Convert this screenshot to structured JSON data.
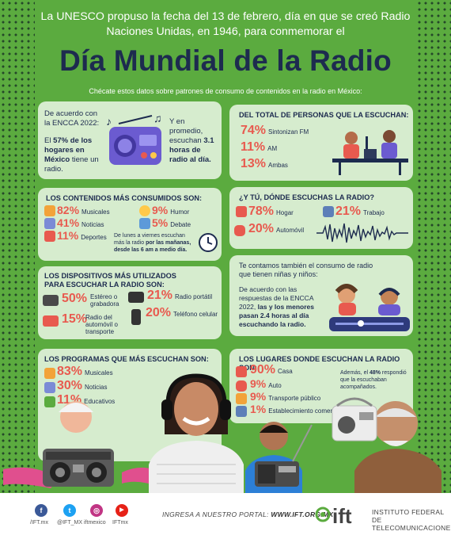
{
  "intro": "La UNESCO propuso la fecha del 13 de febrero, día en que se creó Radio Naciones Unidas, en 1946, para conmemorar el",
  "title": "Día Mundial de la Radio",
  "subtitle": "Chécate estos datos sobre patrones de consumo de contenidos en la radio en México:",
  "card1": {
    "left_a": "De acuerdo con la ENCCA 2022:",
    "left_b1": "El ",
    "left_b_pct": "57% de los hogares en México",
    "left_b2": " tiene un radio.",
    "right_a": "Y en promedio, escuchan",
    "right_b": "3.1 horas de radio al día."
  },
  "card2": {
    "header": "DEL TOTAL DE PERSONAS QUE LA ESCUCHAN:",
    "items": [
      {
        "pct": "74%",
        "label": "Sintonizan FM"
      },
      {
        "pct": "11%",
        "label": "AM"
      },
      {
        "pct": "13%",
        "label": "Ambas"
      }
    ]
  },
  "card3": {
    "header": "LOS CONTENIDOS MÁS CONSUMIDOS SON:",
    "items": [
      {
        "pct": "82%",
        "label": "Musicales"
      },
      {
        "pct": "41%",
        "label": "Noticias"
      },
      {
        "pct": "11%",
        "label": "Deportes"
      },
      {
        "pct": "9%",
        "label": "Humor"
      },
      {
        "pct": "5%",
        "label": "Debate"
      }
    ],
    "note_a": "De lunes a viernes escuchan más la radio ",
    "note_b": "por las mañanas, desde las 6 am a medio día."
  },
  "card4": {
    "header": "¿Y TÚ, DÓNDE ESCUCHAS LA RADIO?",
    "items": [
      {
        "pct": "78%",
        "label": "Hogar"
      },
      {
        "pct": "21%",
        "label": "Trabajo"
      },
      {
        "pct": "20%",
        "label": "Automóvil"
      }
    ]
  },
  "card5": {
    "header_1": "LOS DISPOSITIVOS MÁS UTILIZADOS",
    "header_2": "PARA ESCUCHAR LA RADIO SON:",
    "items": [
      {
        "pct": "50%",
        "label": "Estéreo o grabadora"
      },
      {
        "pct": "21%",
        "label": "Radio portátil"
      },
      {
        "pct": "15%",
        "label": "Radio del automóvil o transporte"
      },
      {
        "pct": "20%",
        "label": "Teléfono celular"
      }
    ]
  },
  "card6": {
    "lead": "Te contamos también el consumo de radio que tienen niñas y niños:",
    "body_a": "De acuerdo con las respuestas de la ENCCA 2022, ",
    "body_b": "las y los menores pasan 2.4 horas al día escuchando la radio."
  },
  "card7": {
    "header": "LOS PROGRAMAS QUE MÁS ESCUCHAN SON:",
    "items": [
      {
        "pct": "83%",
        "label": "Musicales"
      },
      {
        "pct": "30%",
        "label": "Noticias"
      },
      {
        "pct": "11%",
        "label": "Educativos"
      }
    ]
  },
  "card8": {
    "header": "LOS LUGARES DONDE ESCUCHAN LA RADIO SON:",
    "items": [
      {
        "pct": "90%",
        "label": "Casa"
      },
      {
        "pct": "9%",
        "label": "Auto"
      },
      {
        "pct": "9%",
        "label": "Transporte público"
      },
      {
        "pct": "1%",
        "label": "Establecimiento comercial"
      }
    ],
    "note_a": "Además, el ",
    "note_pct": "48%",
    "note_b": " respondió que la escuchaban acompañados."
  },
  "footer": {
    "social": [
      {
        "icon": "facebook-icon",
        "glyph": "f",
        "handle": "/IFT.mx",
        "color": "#3b5998"
      },
      {
        "icon": "twitter-icon",
        "glyph": "t",
        "handle": "@IFT_MX",
        "color": "#1da1f2"
      },
      {
        "icon": "instagram-icon",
        "glyph": "◎",
        "handle": "iftmexico",
        "color": "#c13584"
      },
      {
        "icon": "youtube-icon",
        "glyph": "▶",
        "handle": "IFTmx",
        "color": "#e62117"
      }
    ],
    "portal_label": "INGRESA A NUESTRO PORTAL: ",
    "portal_url": "WWW.IFT.ORG.MX",
    "logo_text": "ift",
    "org_line1": "INSTITUTO FEDERAL DE",
    "org_line2": "TELECOMUNICACIONES"
  },
  "colors": {
    "green": "#5bab3f",
    "card": "#d6ecce",
    "navy": "#1d2b4f",
    "accent": "#e85a4f"
  }
}
